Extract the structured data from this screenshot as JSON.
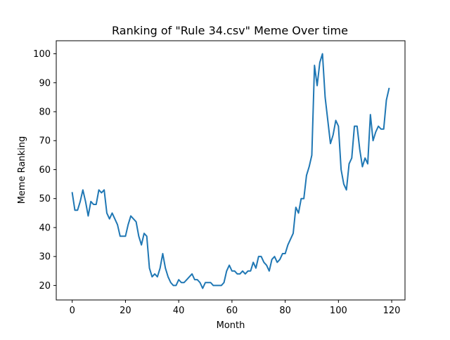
{
  "chart_data": {
    "type": "line",
    "title": "Ranking of \"Rule 34.csv\" Meme Over time",
    "xlabel": "Month",
    "ylabel": "Meme Ranking",
    "xlim": [
      -6,
      125
    ],
    "ylim": [
      15,
      104.5
    ],
    "xticks": [
      0,
      20,
      40,
      60,
      80,
      100,
      120
    ],
    "yticks": [
      20,
      30,
      40,
      50,
      60,
      70,
      80,
      90,
      100
    ],
    "grid": false,
    "line_color": "#1f77b4",
    "series": [
      {
        "x": [
          0,
          1,
          2,
          3,
          4,
          5,
          6,
          7,
          8,
          9,
          10,
          11,
          12,
          13,
          14,
          15,
          16,
          17,
          18,
          19,
          20,
          21,
          22,
          23,
          24,
          25,
          26,
          27,
          28,
          29,
          30,
          31,
          32,
          33,
          34,
          35,
          36,
          37,
          38,
          39,
          40,
          41,
          42,
          43,
          44,
          45,
          46,
          47,
          48,
          49,
          50,
          51,
          52,
          53,
          54,
          55,
          56,
          57,
          58,
          59,
          60,
          61,
          62,
          63,
          64,
          65,
          66,
          67,
          68,
          69,
          70,
          71,
          72,
          73,
          74,
          75,
          76,
          77,
          78,
          79,
          80,
          81,
          82,
          83,
          84,
          85,
          86,
          87,
          88,
          89,
          90,
          91,
          92,
          93,
          94,
          95,
          96,
          97,
          98,
          99,
          100,
          101,
          102,
          103,
          104,
          105,
          106,
          107,
          108,
          109,
          110,
          111,
          112,
          113,
          114,
          115,
          116,
          117,
          118,
          119
        ],
        "values": [
          52,
          46,
          46,
          49,
          53,
          49,
          44,
          49,
          48,
          48,
          53,
          52,
          53,
          45,
          43,
          45,
          43,
          41,
          37,
          37,
          37,
          41,
          44,
          43,
          42,
          37,
          34,
          38,
          37,
          26,
          23,
          24,
          23,
          26,
          31,
          26,
          23,
          21,
          20,
          20,
          22,
          21,
          21,
          22,
          23,
          24,
          22,
          22,
          21,
          19,
          21,
          21,
          21,
          20,
          20,
          20,
          20,
          21,
          25,
          27,
          25,
          25,
          24,
          24,
          25,
          24,
          25,
          25,
          28,
          26,
          30,
          30,
          28,
          27,
          25,
          29,
          30,
          28,
          29,
          31,
          31,
          34,
          36,
          38,
          47,
          45,
          50,
          50,
          58,
          61,
          65,
          96,
          89,
          97,
          100,
          85,
          77,
          69,
          72,
          77,
          75,
          60,
          55,
          53,
          62,
          64,
          75,
          75,
          67,
          61,
          64,
          62,
          79,
          70,
          73,
          75,
          74,
          74,
          84,
          88
        ]
      }
    ]
  }
}
